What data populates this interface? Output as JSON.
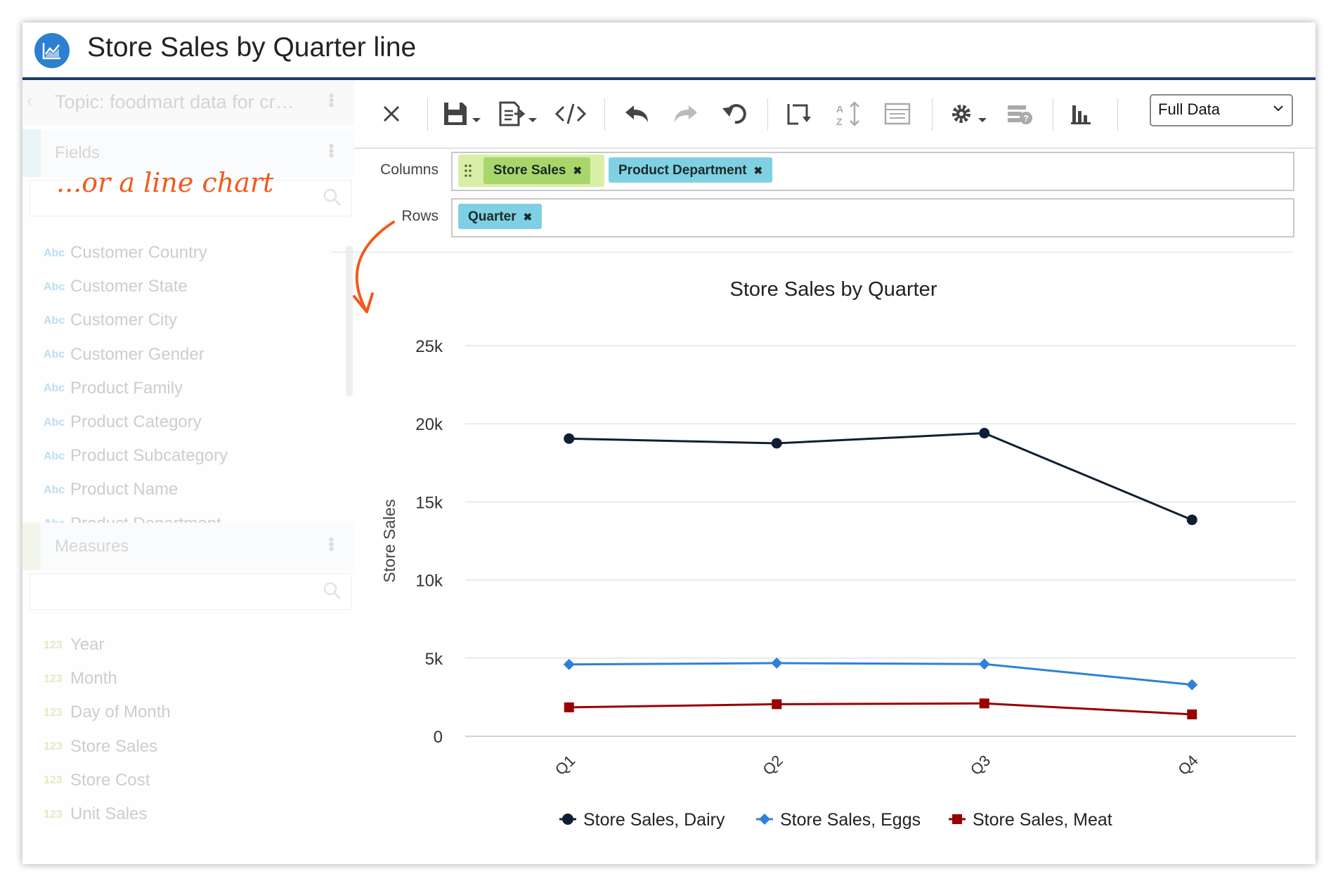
{
  "window": {
    "title": "Store Sales by Quarter line"
  },
  "sidebar": {
    "topic": "Topic: foodmart data for cr…",
    "fields_header": "Fields",
    "fields": [
      {
        "type": "Abc",
        "label": "Customer Country"
      },
      {
        "type": "Abc",
        "label": "Customer State"
      },
      {
        "type": "Abc",
        "label": "Customer City"
      },
      {
        "type": "Abc",
        "label": "Customer Gender"
      },
      {
        "type": "Abc",
        "label": "Product Family"
      },
      {
        "type": "Abc",
        "label": "Product Category"
      },
      {
        "type": "Abc",
        "label": "Product Subcategory"
      },
      {
        "type": "Abc",
        "label": "Product Name"
      },
      {
        "type": "Abc",
        "label": "Product Department"
      }
    ],
    "measures_header": "Measures",
    "measures": [
      {
        "type": "123",
        "label": "Year"
      },
      {
        "type": "123",
        "label": "Month"
      },
      {
        "type": "123",
        "label": "Day of Month"
      },
      {
        "type": "123",
        "label": "Store Sales"
      },
      {
        "type": "123",
        "label": "Store Cost"
      },
      {
        "type": "123",
        "label": "Unit Sales"
      }
    ]
  },
  "annotation": {
    "text": "...or a line chart",
    "color": "#f15a1d"
  },
  "toolbar": {
    "icons": [
      "close-icon",
      "save-icon",
      "export-icon",
      "code-icon",
      "undo-icon",
      "redo-icon",
      "revert-icon",
      "swap-axes-icon",
      "sort-icon",
      "table-view-icon",
      "settings-icon",
      "query-icon",
      "chart-icon"
    ],
    "view_select": "Full Data"
  },
  "shelves": {
    "columns_label": "Columns",
    "rows_label": "Rows",
    "columns": [
      "Store Sales",
      "Product Department"
    ],
    "rows": [
      "Quarter"
    ],
    "remove_glyph": "✖"
  },
  "chart_data": {
    "type": "line",
    "title": "Store Sales by Quarter",
    "xlabel": "",
    "ylabel": "Store Sales",
    "categories": [
      "Q1",
      "Q2",
      "Q3",
      "Q4"
    ],
    "ylim": [
      0,
      25000
    ],
    "yticks": [
      0,
      5000,
      10000,
      15000,
      20000,
      25000
    ],
    "ytick_labels": [
      "0",
      "5k",
      "10k",
      "15k",
      "20k",
      "25k"
    ],
    "grid": true,
    "legend_position": "bottom",
    "series": [
      {
        "name": "Store Sales, Dairy",
        "values": [
          19050,
          18750,
          19400,
          13850
        ],
        "color": "#0f1f33",
        "marker": "circle"
      },
      {
        "name": "Store Sales, Eggs",
        "values": [
          4600,
          4680,
          4620,
          3300
        ],
        "color": "#2f80d8",
        "marker": "diamond"
      },
      {
        "name": "Store Sales, Meat",
        "values": [
          1850,
          2050,
          2100,
          1400
        ],
        "color": "#990000",
        "marker": "square"
      }
    ]
  }
}
